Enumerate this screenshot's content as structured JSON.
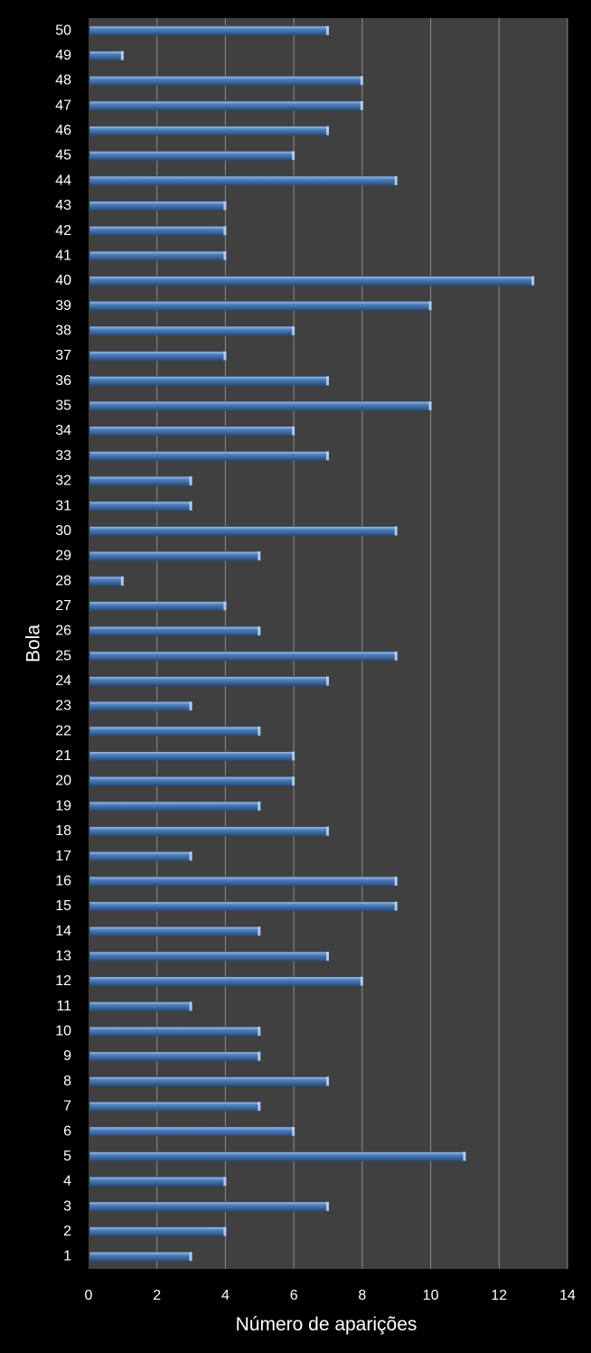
{
  "chart_data": {
    "type": "bar",
    "orientation": "horizontal",
    "title": "",
    "xlabel": "Número de aparições",
    "ylabel": "Bola",
    "xlim": [
      0,
      14
    ],
    "x_ticks": [
      0,
      2,
      4,
      6,
      8,
      10,
      12,
      14
    ],
    "grid": "vertical",
    "legend": "none",
    "categories": [
      "1",
      "2",
      "3",
      "4",
      "5",
      "6",
      "7",
      "8",
      "9",
      "10",
      "11",
      "12",
      "13",
      "14",
      "15",
      "16",
      "17",
      "18",
      "19",
      "20",
      "21",
      "22",
      "23",
      "24",
      "25",
      "26",
      "27",
      "28",
      "29",
      "30",
      "31",
      "32",
      "33",
      "34",
      "35",
      "36",
      "37",
      "38",
      "39",
      "40",
      "41",
      "42",
      "43",
      "44",
      "45",
      "46",
      "47",
      "48",
      "49",
      "50"
    ],
    "values": [
      3,
      4,
      7,
      4,
      11,
      6,
      5,
      7,
      5,
      5,
      3,
      8,
      7,
      5,
      9,
      9,
      3,
      7,
      5,
      6,
      6,
      5,
      3,
      7,
      9,
      5,
      4,
      1,
      5,
      9,
      3,
      3,
      7,
      6,
      10,
      7,
      4,
      6,
      10,
      13,
      4,
      4,
      4,
      9,
      6,
      7,
      8,
      8,
      1,
      7
    ],
    "colors": {
      "background": "#000000",
      "plot_area": "#404040",
      "grid": "#8c8c8c",
      "bar": "#4f81bd",
      "bar_highlight": "#a9c4e8",
      "bar_shadow": "#2b4c78",
      "text": "#ffffff"
    }
  }
}
